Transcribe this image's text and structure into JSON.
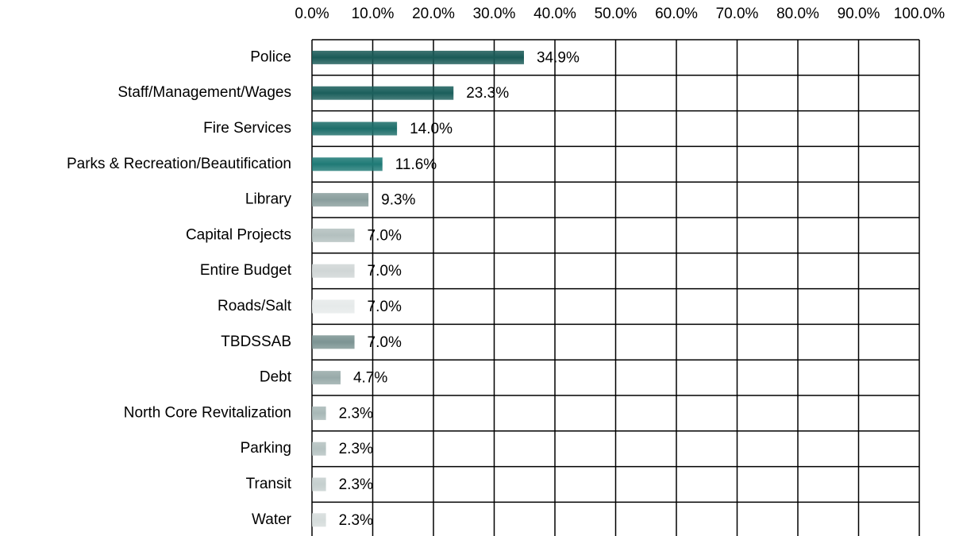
{
  "chart_data": {
    "type": "bar",
    "orientation": "horizontal",
    "categories": [
      "Police",
      "Staff/Management/Wages",
      "Fire Services",
      "Parks & Recreation/Beautification",
      "Library",
      "Capital Projects",
      "Entire Budget",
      "Roads/Salt",
      "TBDSSAB",
      "Debt",
      "North Core Revitalization",
      "Parking",
      "Transit",
      "Water"
    ],
    "values": [
      34.9,
      23.3,
      14.0,
      11.6,
      9.3,
      7.0,
      7.0,
      7.0,
      7.0,
      4.7,
      2.3,
      2.3,
      2.3,
      2.3
    ],
    "value_labels": [
      "34.9%",
      "23.3%",
      "14.0%",
      "11.6%",
      "9.3%",
      "7.0%",
      "7.0%",
      "7.0%",
      "7.0%",
      "4.7%",
      "2.3%",
      "2.3%",
      "2.3%",
      "2.3%"
    ],
    "colors": [
      "#1a5a57",
      "#1b5f5c",
      "#1d6e6a",
      "#1f7a76",
      "#8a9e9d",
      "#b3c0bf",
      "#d0d6d6",
      "#e6eaea",
      "#7c9493",
      "#98aaa9",
      "#a8b8b7",
      "#b5c2c1",
      "#c5cfce",
      "#d5dcdb"
    ],
    "xlim": [
      0,
      100
    ],
    "xticks": [
      {
        "value": 0,
        "label": "0.0%"
      },
      {
        "value": 10,
        "label": "10.0%"
      },
      {
        "value": 20,
        "label": "20.0%"
      },
      {
        "value": 30,
        "label": "30.0%"
      },
      {
        "value": 40,
        "label": "40.0%"
      },
      {
        "value": 50,
        "label": "50.0%"
      },
      {
        "value": 60,
        "label": "60.0%"
      },
      {
        "value": 70,
        "label": "70.0%"
      },
      {
        "value": 80,
        "label": "80.0%"
      },
      {
        "value": 90,
        "label": "90.0%"
      },
      {
        "value": 100,
        "label": "100.0%"
      }
    ],
    "grid": true
  }
}
